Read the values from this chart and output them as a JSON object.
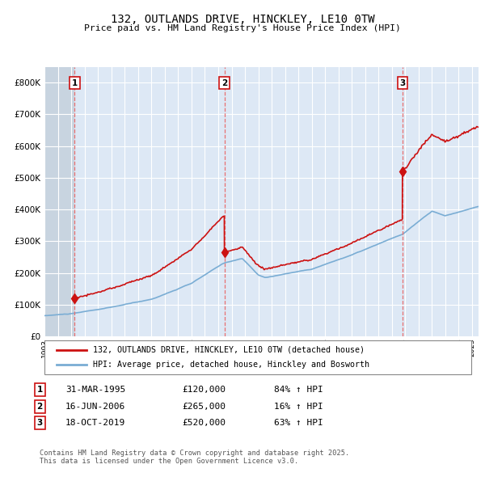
{
  "title_line1": "132, OUTLANDS DRIVE, HINCKLEY, LE10 0TW",
  "title_line2": "Price paid vs. HM Land Registry's House Price Index (HPI)",
  "hpi_label": "HPI: Average price, detached house, Hinckley and Bosworth",
  "property_label": "132, OUTLANDS DRIVE, HINCKLEY, LE10 0TW (detached house)",
  "sale_events": [
    {
      "num": 1,
      "date_str": "31-MAR-1995",
      "price": 120000,
      "pct": "84%",
      "year_x": 1995.25
    },
    {
      "num": 2,
      "date_str": "16-JUN-2006",
      "price": 265000,
      "pct": "16%",
      "year_x": 2006.46
    },
    {
      "num": 3,
      "date_str": "18-OCT-2019",
      "price": 520000,
      "pct": "63%",
      "year_x": 2019.79
    }
  ],
  "ylim": [
    0,
    850000
  ],
  "xlim_start": 1993.0,
  "xlim_end": 2025.5,
  "hpi_color": "#7aadd4",
  "property_color": "#cc1111",
  "vline_color": "#e87070",
  "bg_color": "#dde8f5",
  "grid_color": "#ffffff",
  "footnote": "Contains HM Land Registry data © Crown copyright and database right 2025.\nThis data is licensed under the Open Government Licence v3.0.",
  "sale_box_color": "#cc1111"
}
